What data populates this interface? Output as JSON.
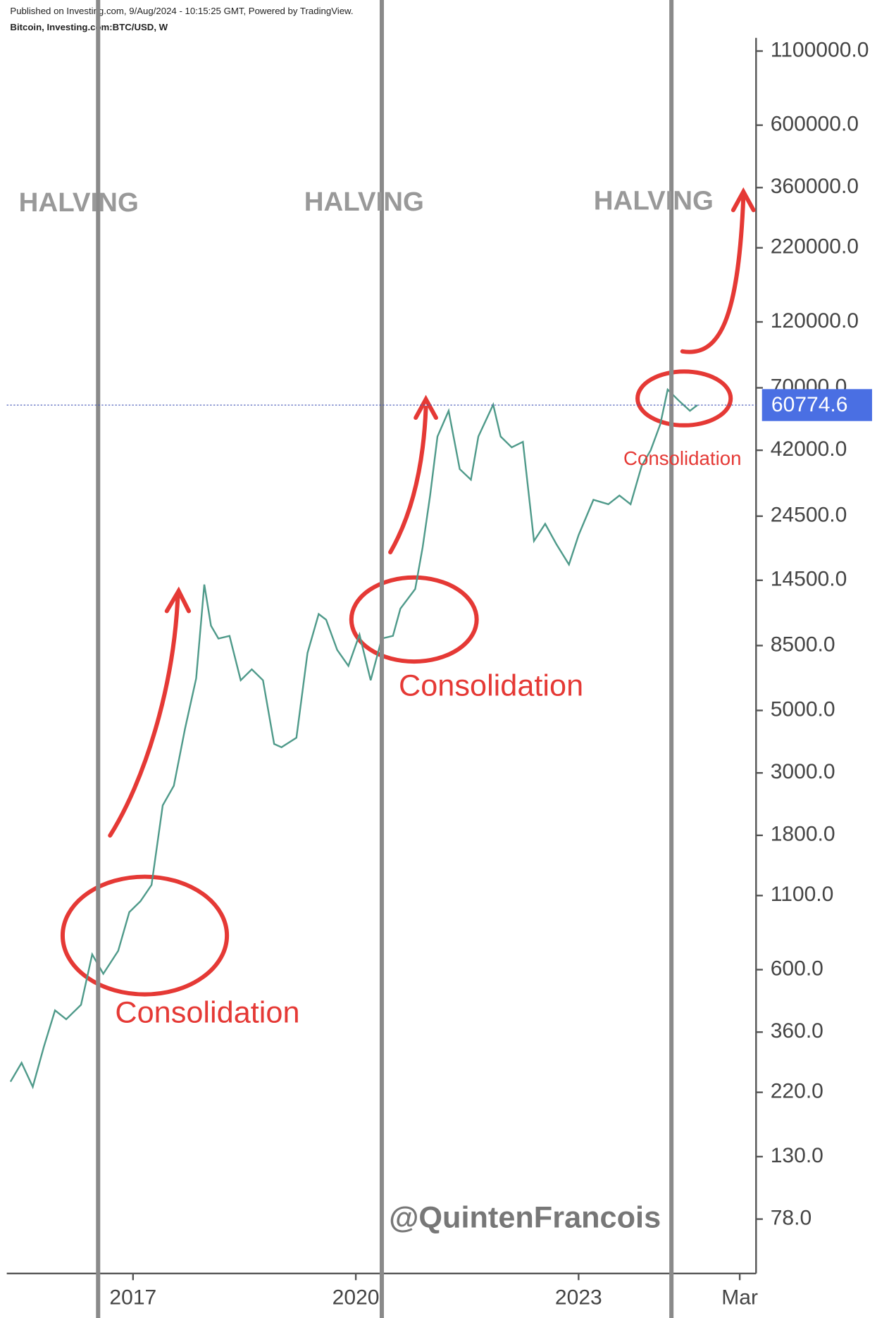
{
  "chart_data": {
    "type": "line",
    "source": "Published on Investing.com, 9/Aug/2024 - 10:15:25 GMT, Powered by TradingView.",
    "title": "Bitcoin, Investing.com:BTC/USD, W",
    "x": [
      2015.35,
      2015.5,
      2015.65,
      2015.8,
      2015.95,
      2016.1,
      2016.3,
      2016.45,
      2016.6,
      2016.8,
      2016.95,
      2017.1,
      2017.25,
      2017.4,
      2017.55,
      2017.7,
      2017.85,
      2017.96,
      2018.05,
      2018.15,
      2018.3,
      2018.45,
      2018.6,
      2018.75,
      2018.9,
      2019.0,
      2019.2,
      2019.35,
      2019.5,
      2019.6,
      2019.75,
      2019.9,
      2020.05,
      2020.2,
      2020.35,
      2020.5,
      2020.6,
      2020.8,
      2020.9,
      2021.0,
      2021.1,
      2021.25,
      2021.4,
      2021.55,
      2021.65,
      2021.85,
      2021.95,
      2022.1,
      2022.25,
      2022.4,
      2022.55,
      2022.7,
      2022.87,
      2023.0,
      2023.2,
      2023.4,
      2023.55,
      2023.7,
      2023.85,
      2023.97,
      2024.1,
      2024.2,
      2024.35,
      2024.5,
      2024.6
    ],
    "values": [
      240,
      280,
      230,
      320,
      430,
      400,
      450,
      680,
      580,
      700,
      960,
      1050,
      1200,
      2300,
      2700,
      4300,
      6500,
      14000,
      10000,
      9000,
      9200,
      6400,
      7000,
      6400,
      3800,
      3700,
      4000,
      8000,
      11000,
      10500,
      8200,
      7200,
      9300,
      6400,
      9000,
      9200,
      11500,
      13500,
      19000,
      29000,
      47000,
      58000,
      36000,
      33000,
      47000,
      61000,
      47000,
      43000,
      45000,
      20000,
      23000,
      19500,
      16500,
      21000,
      28000,
      27000,
      29000,
      27000,
      37000,
      42000,
      52000,
      69000,
      63000,
      58000,
      60774.6
    ],
    "color": "#4f9a8a",
    "log_scale": true,
    "xlim": [
      2015.3,
      2025.39
    ],
    "xticks": [
      2017,
      2020,
      2023,
      {
        "value": 2025.17,
        "label": "Mar"
      }
    ],
    "ylim": [
      50,
      1670000
    ],
    "yticks": [
      {
        "value": 78,
        "label": "78.0"
      },
      {
        "value": 130,
        "label": "130.0"
      },
      {
        "value": 220,
        "label": "220.0"
      },
      {
        "value": 360,
        "label": "360.0"
      },
      {
        "value": 600,
        "label": "600.0"
      },
      {
        "value": 1100,
        "label": "1100.0"
      },
      {
        "value": 1800,
        "label": "1800.0"
      },
      {
        "value": 3000,
        "label": "3000.0"
      },
      {
        "value": 5000,
        "label": "5000.0"
      },
      {
        "value": 8500,
        "label": "8500.0"
      },
      {
        "value": 14500,
        "label": "14500.0"
      },
      {
        "value": 24500,
        "label": "24500.0"
      },
      {
        "value": 42000,
        "label": "42000.0"
      },
      {
        "value": 70000,
        "label": "70000.0"
      },
      {
        "value": 120000,
        "label": "120000.0"
      },
      {
        "value": 220000,
        "label": "220000.0"
      },
      {
        "value": 360000,
        "label": "360000.0"
      },
      {
        "value": 600000,
        "label": "600000.0"
      },
      {
        "value": 1100000,
        "label": "1100000.0"
      }
    ],
    "last_price": 60774.6,
    "halvings": [
      2016.53,
      2020.35,
      2024.25
    ],
    "annotations": [
      "HALVING",
      "HALVING",
      "HALVING",
      "Consolidation",
      "Consolidation",
      "Consolidation",
      "@QuintenFrancois"
    ]
  }
}
